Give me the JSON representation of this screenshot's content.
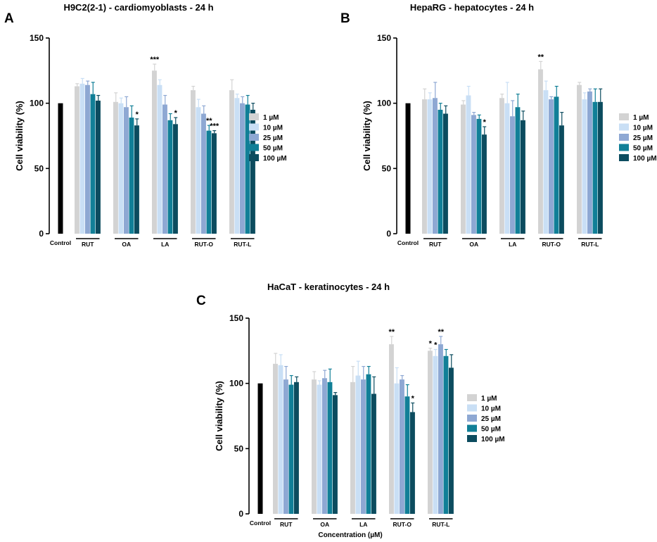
{
  "colors": {
    "control": "#000000",
    "1 µM": "#d3d3d3",
    "10 µM": "#c9dff5",
    "25 µM": "#8ea8d3",
    "50 µM": "#117f97",
    "100 µM": "#0c4c5f"
  },
  "chart_data": [
    {
      "type": "bar",
      "letter": "A",
      "title": "H9C2(2-1) - cardiomyoblasts - 24 h",
      "ylabel": "Cell viability (%)",
      "xlabel": "",
      "ylim": [
        0,
        150
      ],
      "yticks": [
        0,
        50,
        100,
        150
      ],
      "control": {
        "label": "Control",
        "value": 100
      },
      "groups": [
        "RUT",
        "OA",
        "LA",
        "RUT-O",
        "RUT-L"
      ],
      "legend": [
        "1 µM",
        "10 µM",
        "25 µM",
        "50 µM",
        "100 µM"
      ],
      "series": [
        {
          "name": "1 µM",
          "values": [
            113,
            101,
            125,
            110,
            110
          ],
          "err": [
            2,
            7,
            5,
            3,
            8
          ]
        },
        {
          "name": "10 µM",
          "values": [
            115,
            100,
            114,
            97,
            104
          ],
          "err": [
            4,
            4,
            4,
            6,
            3
          ]
        },
        {
          "name": "25 µM",
          "values": [
            114,
            97,
            99,
            92,
            100
          ],
          "err": [
            3,
            8,
            7,
            6,
            5
          ]
        },
        {
          "name": "50 µM",
          "values": [
            107,
            89,
            87,
            79,
            99
          ],
          "err": [
            9,
            9,
            5,
            4,
            7
          ]
        },
        {
          "name": "100 µM",
          "values": [
            102,
            83,
            84,
            77,
            95
          ],
          "err": [
            4,
            5,
            5,
            2,
            5
          ]
        }
      ],
      "annotations": [
        {
          "group": 1,
          "series": 4,
          "text": "*"
        },
        {
          "group": 2,
          "series": 0,
          "text": "***"
        },
        {
          "group": 2,
          "series": 4,
          "text": "*"
        },
        {
          "group": 3,
          "series": 3,
          "text": "**"
        },
        {
          "group": 3,
          "series": 4,
          "text": "***"
        }
      ]
    },
    {
      "type": "bar",
      "letter": "B",
      "title": "HepaRG - hepatocytes - 24 h",
      "ylabel": "Cell viability (%)",
      "xlabel": "",
      "ylim": [
        0,
        150
      ],
      "yticks": [
        0,
        50,
        100,
        150
      ],
      "control": {
        "label": "Control",
        "value": 100
      },
      "groups": [
        "RUT",
        "OA",
        "LA",
        "RUT-O",
        "RUT-L"
      ],
      "legend": [
        "1 µM",
        "10 µM",
        "25 µM",
        "50 µM",
        "100 µM"
      ],
      "series": [
        {
          "name": "1 µM",
          "values": [
            103,
            99,
            104,
            126,
            114
          ],
          "err": [
            8,
            3,
            3,
            6,
            2
          ]
        },
        {
          "name": "10 µM",
          "values": [
            103,
            106,
            100,
            110,
            103
          ],
          "err": [
            5,
            7,
            16,
            7,
            5
          ]
        },
        {
          "name": "25 µM",
          "values": [
            104,
            91,
            90,
            103,
            109
          ],
          "err": [
            12,
            2,
            12,
            2,
            2
          ]
        },
        {
          "name": "50 µM",
          "values": [
            95,
            88,
            97,
            105,
            101
          ],
          "err": [
            5,
            3,
            10,
            8,
            10
          ]
        },
        {
          "name": "100 µM",
          "values": [
            92,
            76,
            87,
            83,
            101
          ],
          "err": [
            6,
            6,
            7,
            10,
            10
          ]
        }
      ],
      "annotations": [
        {
          "group": 1,
          "series": 4,
          "text": "*"
        },
        {
          "group": 3,
          "series": 0,
          "text": "**"
        }
      ]
    },
    {
      "type": "bar",
      "letter": "C",
      "title": "HaCaT - keratinocytes - 24 h",
      "ylabel": "Cell viability (%)",
      "xlabel": "Concentration (µM)",
      "ylim": [
        0,
        150
      ],
      "yticks": [
        0,
        50,
        100,
        150
      ],
      "control": {
        "label": "Control",
        "value": 100
      },
      "groups": [
        "RUT",
        "OA",
        "LA",
        "RUT-O",
        "RUT-L"
      ],
      "legend": [
        "1 µM",
        "10 µM",
        "25 µM",
        "50 µM",
        "100 µM"
      ],
      "series": [
        {
          "name": "1 µM",
          "values": [
            115,
            103,
            101,
            130,
            125
          ],
          "err": [
            8,
            6,
            12,
            6,
            2
          ]
        },
        {
          "name": "10 µM",
          "values": [
            114,
            99,
            106,
            100,
            121
          ],
          "err": [
            8,
            3,
            11,
            12,
            5
          ]
        },
        {
          "name": "25 µM",
          "values": [
            103,
            104,
            103,
            103,
            130
          ],
          "err": [
            10,
            6,
            10,
            3,
            6
          ]
        },
        {
          "name": "50 µM",
          "values": [
            99,
            101,
            107,
            90,
            121
          ],
          "err": [
            7,
            10,
            6,
            9,
            5
          ]
        },
        {
          "name": "100 µM",
          "values": [
            101,
            91,
            92,
            78,
            112
          ],
          "err": [
            4,
            2,
            13,
            7,
            10
          ]
        }
      ],
      "annotations": [
        {
          "group": 3,
          "series": 0,
          "text": "**"
        },
        {
          "group": 3,
          "series": 4,
          "text": "*"
        },
        {
          "group": 4,
          "series": 0,
          "text": "*"
        },
        {
          "group": 4,
          "series": 1,
          "text": "*"
        },
        {
          "group": 4,
          "series": 2,
          "text": "**"
        }
      ]
    }
  ]
}
